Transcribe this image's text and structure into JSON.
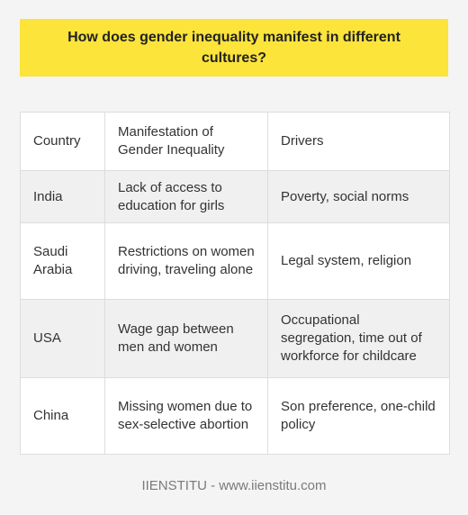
{
  "title": "How does gender inequality manifest in different cultures?",
  "table": {
    "headers": [
      "Country",
      "Manifestation of Gender Inequality",
      "Drivers"
    ],
    "rows": [
      [
        "India",
        "Lack of access to education for girls",
        "Poverty, social norms"
      ],
      [
        "Saudi Arabia",
        "Restrictions on women driving, traveling alone",
        "Legal system, religion"
      ],
      [
        "USA",
        "Wage gap between men and women",
        "Occupational segregation, time out of workforce for childcare"
      ],
      [
        "China",
        "Missing women due to sex-selective abortion",
        "Son preference, one-child policy"
      ]
    ]
  },
  "footer": "IIENSTITU - www.iienstitu.com",
  "colors": {
    "title_background": "#fce43b",
    "page_background": "#f4f4f4",
    "row_white": "#ffffff",
    "row_gray": "#f0f0f0",
    "border": "#dddddd"
  }
}
